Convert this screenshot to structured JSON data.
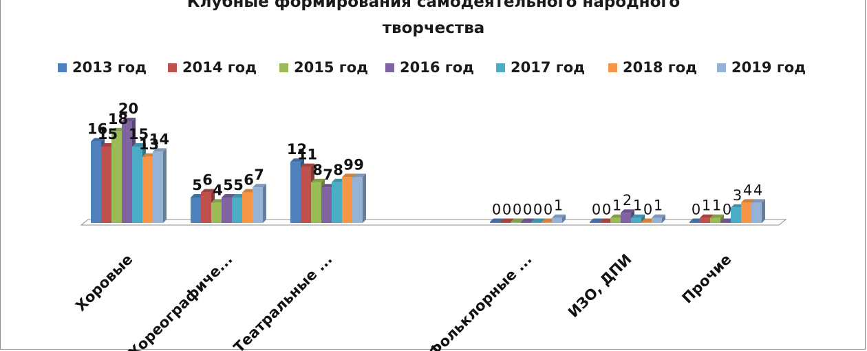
{
  "chart_data": {
    "type": "bar",
    "title": "Клубные формирования самодеятельного народного творчества",
    "title_lines": [
      "Клубные формирования самодеятельного народного",
      "творчества"
    ],
    "categories": [
      "Хоровые",
      "Хореографиче...",
      "Театральные ...",
      "",
      "Фольклорные ...",
      "ИЗО, ДПИ",
      "Прочие"
    ],
    "series": [
      {
        "name": "2013 год",
        "color": "#4f81bd",
        "values": [
          16,
          5,
          12,
          null,
          0,
          0,
          0
        ]
      },
      {
        "name": "2014 год",
        "color": "#c0504d",
        "values": [
          15,
          6,
          11,
          null,
          0,
          0,
          1
        ]
      },
      {
        "name": "2015 год",
        "color": "#9bbb59",
        "values": [
          18,
          4,
          8,
          null,
          0,
          1,
          1
        ]
      },
      {
        "name": "2016 год",
        "color": "#8064a2",
        "values": [
          20,
          5,
          7,
          null,
          0,
          2,
          0
        ]
      },
      {
        "name": "2017 год",
        "color": "#4bacc6",
        "values": [
          15,
          5,
          8,
          null,
          0,
          1,
          3
        ]
      },
      {
        "name": "2018 год",
        "color": "#f79646",
        "values": [
          13,
          6,
          9,
          null,
          0,
          0,
          4
        ]
      },
      {
        "name": "2019 год",
        "color": "#95b3d7",
        "values": [
          14,
          7,
          9,
          null,
          1,
          1,
          4
        ]
      }
    ],
    "ylim": [
      0,
      20
    ],
    "legend_position": "top",
    "grid": false,
    "style": "3d-clustered-column"
  }
}
